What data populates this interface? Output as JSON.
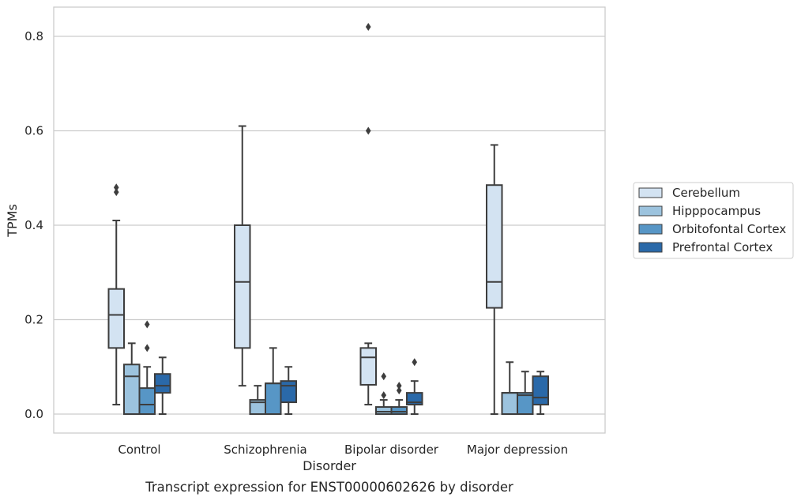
{
  "chart_data": {
    "type": "box",
    "title": "",
    "caption": "Transcript expression for ENST00000602626 by disorder",
    "xlabel": "Disorder",
    "ylabel": "TPMs",
    "ylim": [
      -0.04,
      0.86
    ],
    "yticks": [
      "0.0",
      "0.2",
      "0.4",
      "0.6",
      "0.8"
    ],
    "ytick_values": [
      0.0,
      0.2,
      0.4,
      0.6,
      0.8
    ],
    "grid": "horizontal",
    "legend_position": "right",
    "categories": [
      "Control",
      "Schizophrenia",
      "Bipolar disorder",
      "Major depression"
    ],
    "series": [
      {
        "name": "Cerebellum",
        "color": "#d3e3f2",
        "boxes": [
          {
            "whislo": 0.02,
            "q1": 0.14,
            "med": 0.21,
            "q3": 0.265,
            "whishi": 0.41,
            "fliers": [
              0.47,
              0.48
            ]
          },
          {
            "whislo": 0.06,
            "q1": 0.14,
            "med": 0.28,
            "q3": 0.4,
            "whishi": 0.61,
            "fliers": []
          },
          {
            "whislo": 0.02,
            "q1": 0.062,
            "med": 0.12,
            "q3": 0.14,
            "whishi": 0.15,
            "fliers": [
              0.6,
              0.82
            ]
          },
          {
            "whislo": 0.0,
            "q1": 0.225,
            "med": 0.28,
            "q3": 0.485,
            "whishi": 0.57,
            "fliers": []
          }
        ]
      },
      {
        "name": "Hipppocampus",
        "color": "#9cc3de",
        "boxes": [
          {
            "whislo": 0.0,
            "q1": 0.0,
            "med": 0.08,
            "q3": 0.105,
            "whishi": 0.15,
            "fliers": []
          },
          {
            "whislo": 0.0,
            "q1": 0.0,
            "med": 0.025,
            "q3": 0.03,
            "whishi": 0.06,
            "fliers": []
          },
          {
            "whislo": 0.0,
            "q1": 0.0,
            "med": 0.005,
            "q3": 0.015,
            "whishi": 0.03,
            "fliers": [
              0.04,
              0.08
            ]
          },
          {
            "whislo": 0.0,
            "q1": 0.0,
            "med": 0.045,
            "q3": 0.045,
            "whishi": 0.11,
            "fliers": []
          }
        ]
      },
      {
        "name": "Orbitofontal Cortex",
        "color": "#5796c6",
        "boxes": [
          {
            "whislo": 0.0,
            "q1": 0.0,
            "med": 0.02,
            "q3": 0.055,
            "whishi": 0.1,
            "fliers": [
              0.14,
              0.19
            ]
          },
          {
            "whislo": 0.0,
            "q1": 0.0,
            "med": 0.065,
            "q3": 0.065,
            "whishi": 0.14,
            "fliers": []
          },
          {
            "whislo": 0.0,
            "q1": 0.0,
            "med": 0.005,
            "q3": 0.015,
            "whishi": 0.03,
            "fliers": [
              0.05,
              0.06
            ]
          },
          {
            "whislo": 0.0,
            "q1": 0.0,
            "med": 0.04,
            "q3": 0.045,
            "whishi": 0.09,
            "fliers": []
          }
        ]
      },
      {
        "name": "Prefrontal Cortex",
        "color": "#2a69a9",
        "boxes": [
          {
            "whislo": 0.0,
            "q1": 0.045,
            "med": 0.06,
            "q3": 0.085,
            "whishi": 0.12,
            "fliers": []
          },
          {
            "whislo": 0.0,
            "q1": 0.025,
            "med": 0.06,
            "q3": 0.07,
            "whishi": 0.1,
            "fliers": []
          },
          {
            "whislo": 0.0,
            "q1": 0.02,
            "med": 0.025,
            "q3": 0.045,
            "whishi": 0.07,
            "fliers": [
              0.11
            ]
          },
          {
            "whislo": 0.0,
            "q1": 0.02,
            "med": 0.035,
            "q3": 0.08,
            "whishi": 0.09,
            "fliers": []
          }
        ]
      }
    ]
  }
}
